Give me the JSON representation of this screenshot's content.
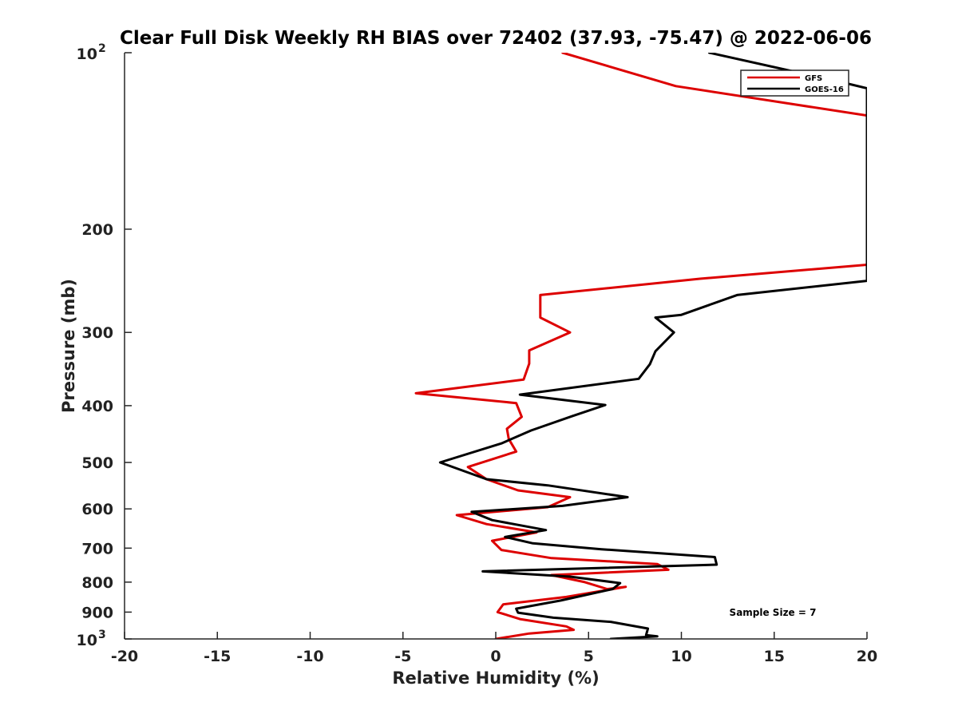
{
  "chart_data": {
    "type": "line",
    "title": "Clear Full Disk Weekly RH BIAS over 72402 (37.93, -75.47) @ 2022-06-06",
    "xlabel": "Relative Humidity (%)",
    "ylabel": "Pressure (mb)",
    "xlim": [
      -20,
      20
    ],
    "ylim": [
      100,
      1000
    ],
    "yscale": "log",
    "y_reversed": true,
    "grid": false,
    "legend_position": "top-right",
    "x_ticks": [
      -20,
      -15,
      -10,
      -5,
      0,
      5,
      10,
      15,
      20
    ],
    "x_tick_labels": [
      "-20",
      "-15",
      "-10",
      "-5",
      "0",
      "5",
      "10",
      "15",
      "20"
    ],
    "y_ticks": [
      200,
      300,
      400,
      500,
      600,
      700,
      800,
      900
    ],
    "y_tick_labels": [
      "200",
      "300",
      "400",
      "500",
      "600",
      "700",
      "800",
      "900"
    ],
    "y_edge_labels": [
      {
        "value": 100,
        "base": "10",
        "exponent": "2"
      },
      {
        "value": 1000,
        "base": "10",
        "exponent": "3"
      }
    ],
    "annotation": "Sample Size = 7",
    "series": [
      {
        "name": "GFS",
        "color": "#dd0000",
        "x": [
          3.6,
          9.7,
          20.0,
          20.0,
          11.0,
          2.4,
          2.4,
          4.0,
          1.8,
          1.8,
          1.5,
          -4.3,
          1.1,
          1.4,
          0.6,
          0.7,
          1.1,
          -1.5,
          -0.5,
          1.2,
          4.0,
          2.8,
          -2.1,
          -0.5,
          2.2,
          -0.2,
          0.3,
          3.0,
          8.7,
          9.3,
          3.0,
          4.8,
          6.0,
          7.0,
          3.8,
          0.4,
          0.1,
          1.3,
          3.8,
          4.2,
          1.8,
          0.0
        ],
        "y": [
          100,
          114,
          128,
          230,
          243,
          259,
          283,
          300,
          322,
          339,
          361,
          381,
          396,
          418,
          438,
          456,
          479,
          509,
          534,
          558,
          573,
          596,
          615,
          637,
          658,
          680,
          705,
          728,
          745,
          762,
          778,
          800,
          822,
          815,
          848,
          873,
          900,
          925,
          952,
          965,
          979,
          1000
        ]
      },
      {
        "name": "GOES-16",
        "color": "#000000",
        "x": [
          11.5,
          18.5,
          20.0,
          20.0,
          13.0,
          10.0,
          8.6,
          9.6,
          8.6,
          8.3,
          7.7,
          1.3,
          5.9,
          4.1,
          1.9,
          0.3,
          -3.0,
          -0.5,
          2.8,
          7.1,
          3.6,
          -1.3,
          -0.2,
          2.7,
          0.5,
          2.0,
          5.7,
          11.8,
          11.9,
          -0.7,
          4.0,
          6.7,
          6.3,
          3.5,
          1.1,
          1.2,
          3.1,
          6.2,
          8.2,
          8.1,
          8.7,
          6.2
        ],
        "y": [
          100,
          112,
          115,
          245,
          259,
          280,
          283,
          300,
          323,
          340,
          360,
          383,
          399,
          417,
          441,
          464,
          500,
          534,
          547,
          573,
          593,
          607,
          627,
          652,
          670,
          687,
          703,
          725,
          747,
          767,
          783,
          803,
          822,
          860,
          888,
          902,
          920,
          935,
          960,
          985,
          990,
          1000
        ]
      }
    ]
  }
}
